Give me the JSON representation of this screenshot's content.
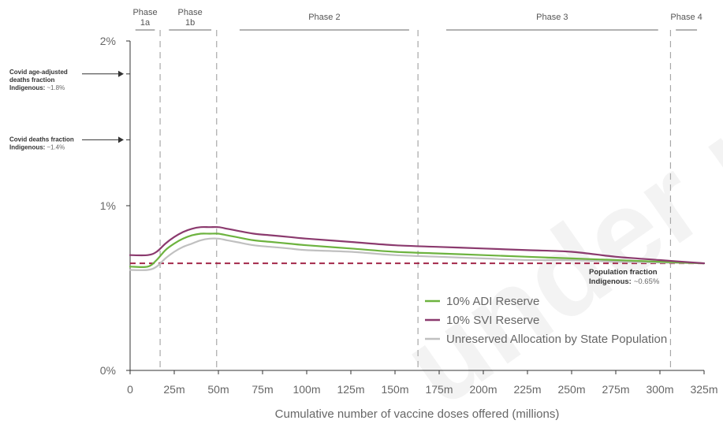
{
  "chart_data": {
    "type": "line",
    "title": "",
    "xlabel": "Cumulative number of vaccine doses offered (millions)",
    "ylabel": "",
    "xlim": [
      0,
      325
    ],
    "ylim": [
      0,
      2
    ],
    "xticks": [
      0,
      25,
      50,
      75,
      100,
      125,
      150,
      175,
      200,
      225,
      250,
      275,
      300,
      325
    ],
    "xtick_labels": [
      "0",
      "25m",
      "50m",
      "75m",
      "100m",
      "125m",
      "150m",
      "175m",
      "200m",
      "225m",
      "250m",
      "275m",
      "300m",
      "325m"
    ],
    "yticks": [
      0,
      1,
      2
    ],
    "ytick_labels": [
      "0%",
      "1%",
      "2%"
    ],
    "grid": false,
    "legend_position": "bottom-right",
    "series": [
      {
        "name": "10% ADI Reserve",
        "color": "#6db33f",
        "x": [
          0,
          10,
          15,
          20,
          25,
          30,
          35,
          40,
          45,
          50,
          55,
          60,
          70,
          80,
          90,
          100,
          125,
          150,
          175,
          200,
          225,
          250,
          275,
          300,
          325
        ],
        "values": [
          0.63,
          0.63,
          0.67,
          0.73,
          0.77,
          0.8,
          0.82,
          0.83,
          0.83,
          0.83,
          0.82,
          0.81,
          0.79,
          0.78,
          0.77,
          0.76,
          0.74,
          0.72,
          0.71,
          0.7,
          0.69,
          0.68,
          0.67,
          0.66,
          0.65
        ]
      },
      {
        "name": "10% SVI Reserve",
        "color": "#8b3a6e",
        "x": [
          0,
          10,
          15,
          20,
          25,
          30,
          35,
          40,
          45,
          50,
          55,
          60,
          70,
          80,
          90,
          100,
          125,
          150,
          175,
          200,
          225,
          250,
          275,
          300,
          325
        ],
        "values": [
          0.7,
          0.7,
          0.72,
          0.77,
          0.81,
          0.84,
          0.86,
          0.87,
          0.87,
          0.87,
          0.86,
          0.85,
          0.83,
          0.82,
          0.81,
          0.8,
          0.78,
          0.76,
          0.75,
          0.74,
          0.73,
          0.72,
          0.69,
          0.67,
          0.65
        ]
      },
      {
        "name": "Unreserved Allocation by State Population",
        "color": "#c0c0c0",
        "x": [
          0,
          10,
          15,
          20,
          25,
          30,
          35,
          40,
          45,
          50,
          55,
          60,
          70,
          80,
          90,
          100,
          125,
          150,
          175,
          200,
          225,
          250,
          275,
          300,
          325
        ],
        "values": [
          0.61,
          0.61,
          0.63,
          0.68,
          0.72,
          0.75,
          0.77,
          0.79,
          0.8,
          0.8,
          0.79,
          0.78,
          0.76,
          0.75,
          0.74,
          0.73,
          0.72,
          0.7,
          0.69,
          0.68,
          0.67,
          0.67,
          0.66,
          0.655,
          0.65
        ]
      }
    ],
    "reference_line": {
      "value": 0.65,
      "color": "#a3284a",
      "label": "Population fraction",
      "sublabel_bold": "Indigenous:",
      "sublabel_value": "~0.65%"
    },
    "phase_boundaries": [
      17,
      49,
      163,
      306
    ],
    "phases": [
      {
        "label_line1": "Phase",
        "label_line2": "1a",
        "x_from": 3,
        "x_to": 14
      },
      {
        "label_line1": "Phase",
        "label_line2": "1b",
        "x_from": 22,
        "x_to": 46
      },
      {
        "label_line1": "Phase 2",
        "label_line2": "",
        "x_from": 62,
        "x_to": 158
      },
      {
        "label_line1": "Phase 3",
        "label_line2": "",
        "x_from": 179,
        "x_to": 299
      },
      {
        "label_line1": "Phase 4",
        "label_line2": "",
        "x_from": 309,
        "x_to": 321
      }
    ],
    "annotations": [
      {
        "line1": "Covid age-adjusted",
        "line2": "deaths fraction",
        "line3_bold": "Indigenous:",
        "line3_value": "~1.8%",
        "value": 1.8
      },
      {
        "line1": "Covid deaths fraction",
        "line2": "",
        "line3_bold": "Indigenous:",
        "line3_value": "~1.4%",
        "value": 1.4
      }
    ]
  },
  "watermark_text": "under review"
}
